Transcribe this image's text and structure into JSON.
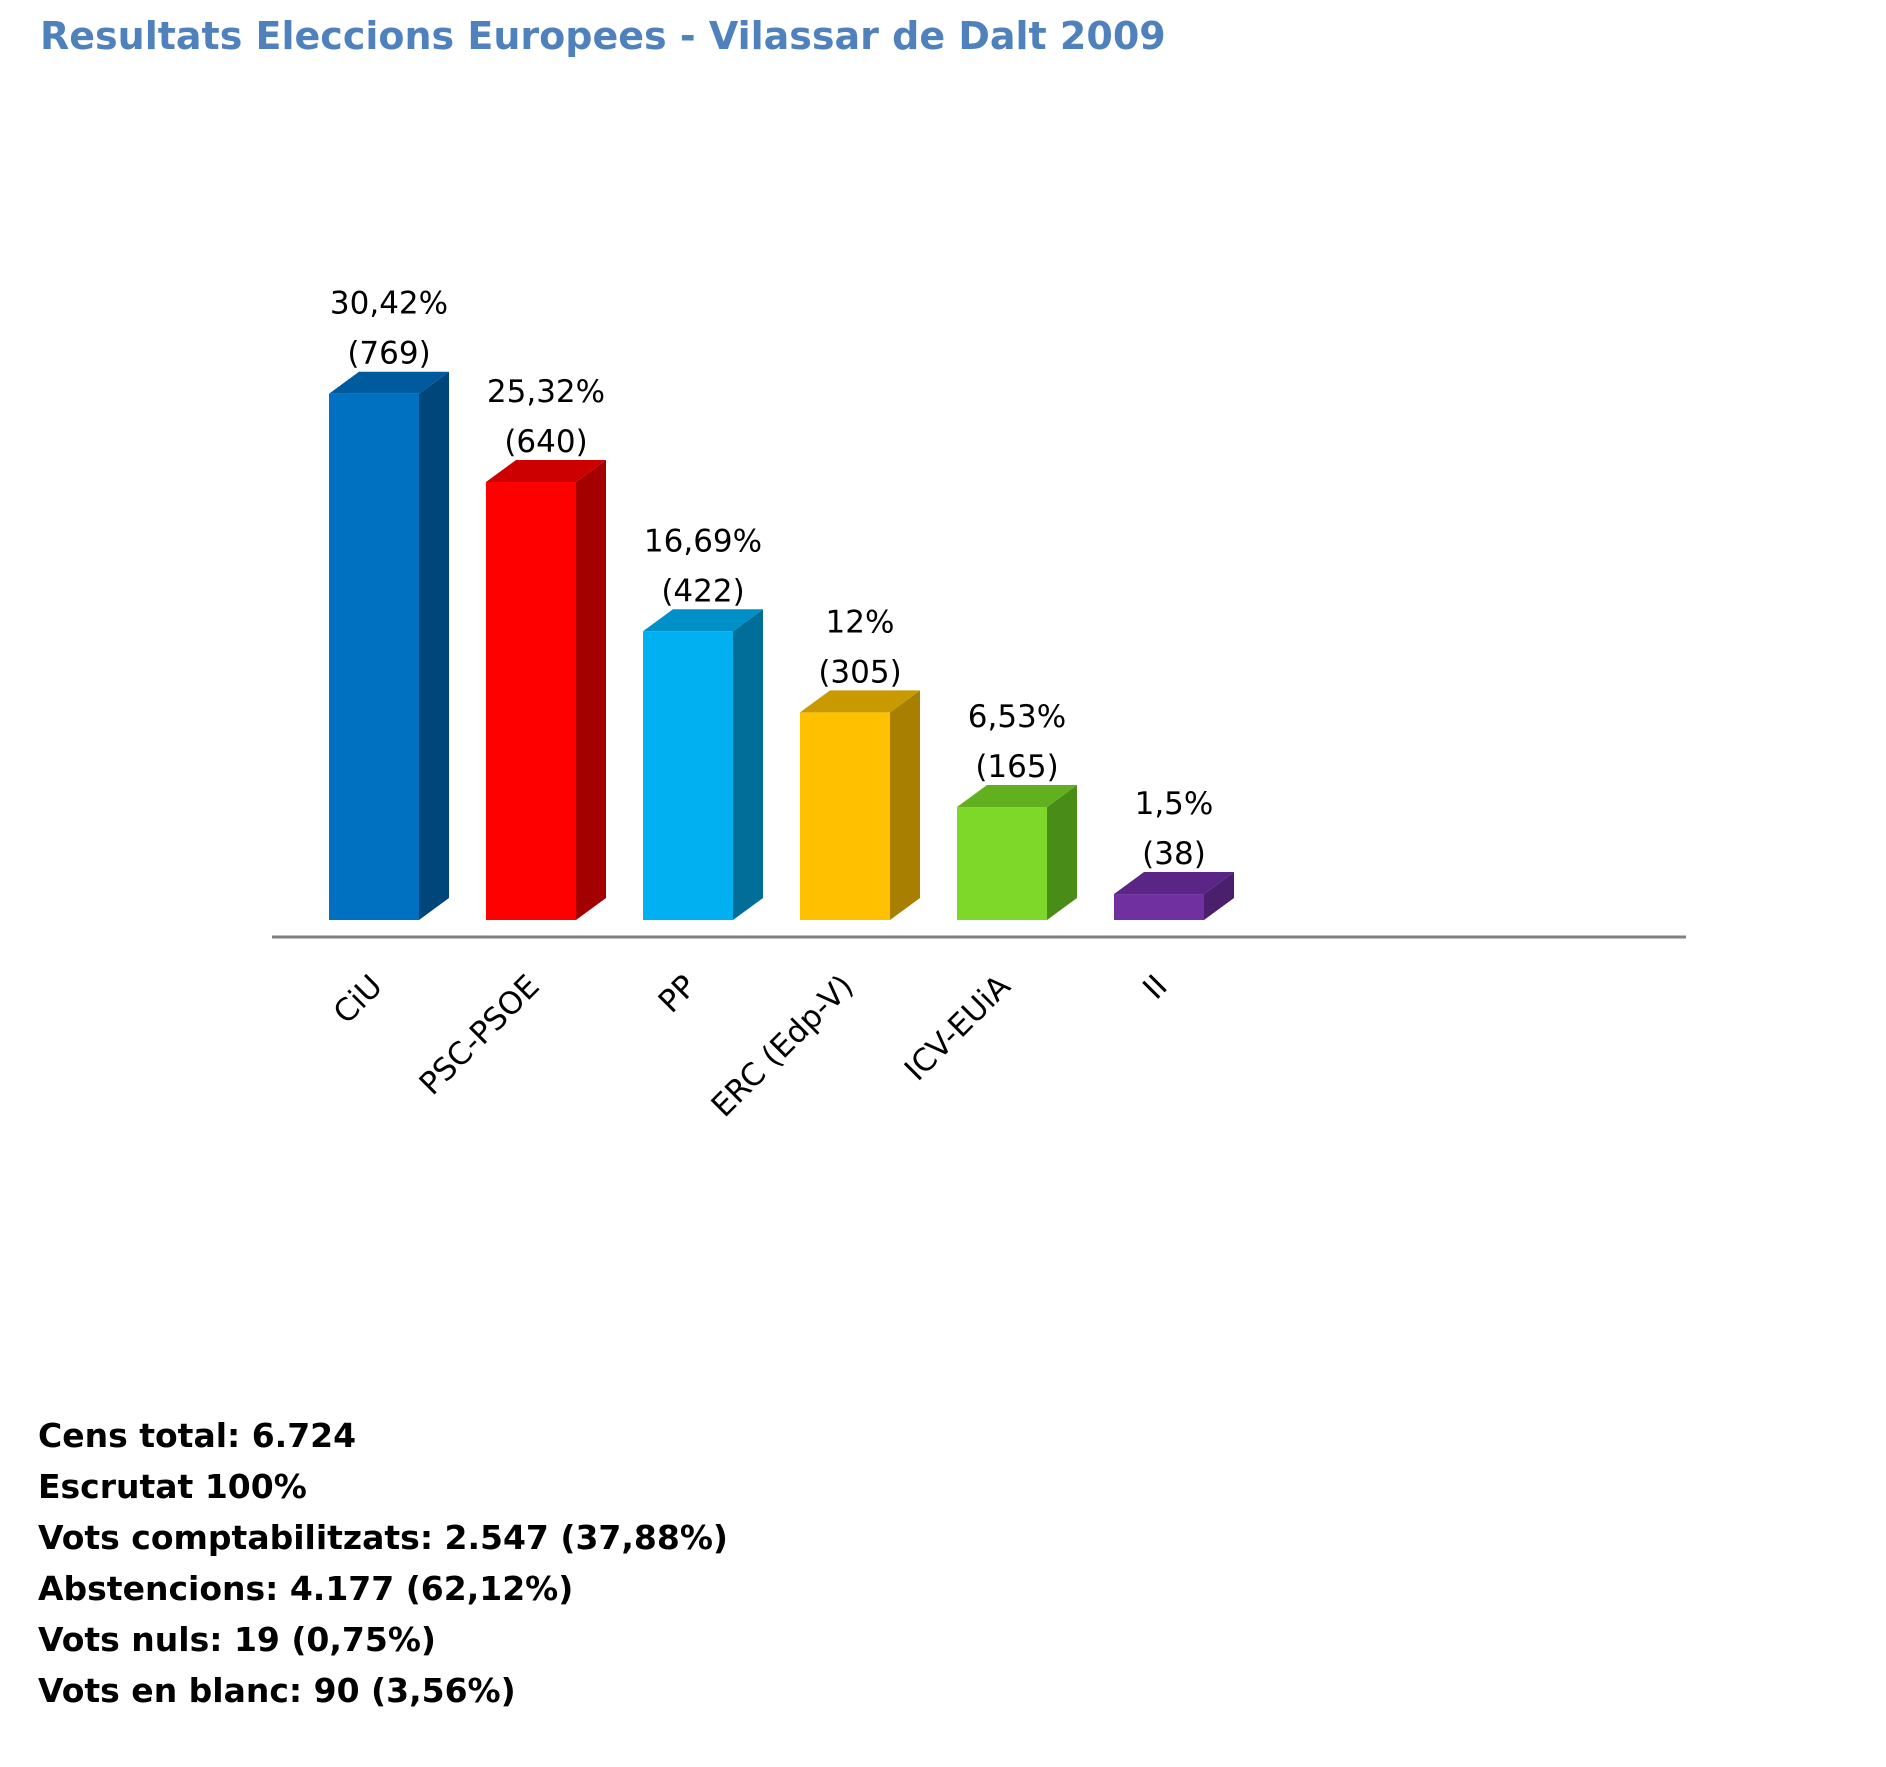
{
  "chart_data": {
    "type": "bar",
    "title": "Resultats Eleccions Europees - Vilassar de Dalt 2009",
    "xlabel": "",
    "ylabel": "",
    "ylim": [
      0,
      100
    ],
    "grid": false,
    "legend": "none",
    "categories": [
      "CiU",
      "PSC-PSOE",
      "PP",
      "ERC (Edp-V)",
      "ICV-EUiA",
      "II"
    ],
    "series": [
      {
        "values": [
          30.42,
          25.32,
          16.69,
          12,
          6.53,
          1.5
        ],
        "votes": [
          769,
          640,
          422,
          305,
          165,
          38
        ],
        "percent_labels": [
          "30,42%",
          "25,32%",
          "16,69%",
          "12%",
          "6,53%",
          "1,5%"
        ],
        "votes_labels": [
          "(769)",
          "(640)",
          "(422)",
          "(305)",
          "(165)",
          "(38)"
        ]
      }
    ],
    "colors": {
      "front": [
        "#0070c0",
        "#ff0000",
        "#00b0f0",
        "#ffc000",
        "#7ed82a",
        "#7030a0"
      ],
      "side": [
        "#00467a",
        "#a50000",
        "#006e99",
        "#a87f00",
        "#4a8c18",
        "#4a1f6b"
      ],
      "top": [
        "#005a9e",
        "#cc0000",
        "#0090c8",
        "#c99a00",
        "#62b020",
        "#5a2585"
      ]
    },
    "axis_color": "#808080",
    "title_color": "#4f81bd"
  },
  "stats": [
    "Cens total: 6.724",
    "Escrutat 100%",
    "Vots comptabilitzats: 2.547 (37,88%)",
    "Abstencions: 4.177 (62,12%)",
    "Vots nuls: 19 (0,75%)",
    "Vots en blanc: 90 (3,56%)"
  ]
}
